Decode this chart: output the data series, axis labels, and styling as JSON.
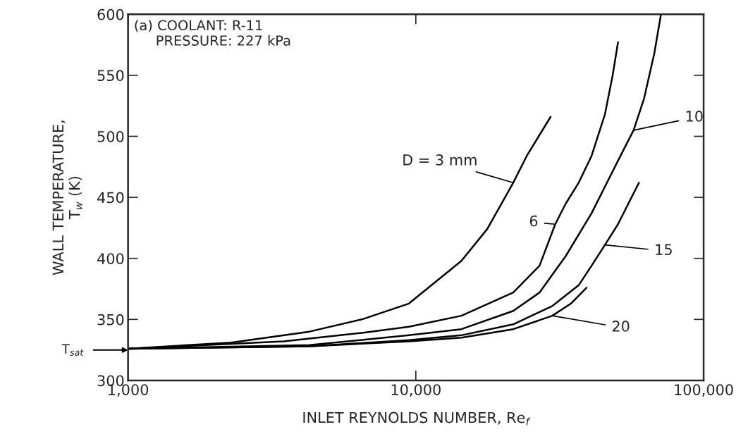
{
  "chart_data": {
    "type": "line",
    "xlabel": "INLET REYNOLDS NUMBER, Re$_{f}$",
    "ylabel": "WALL TEMPERATURE,\nT$_{w}$ (K)",
    "annotations": [
      "(a) COOLANT: R-11\n     PRESSURE: 227 kPa",
      "T$_{sat}$"
    ],
    "log": "x",
    "grid": false,
    "legend": "right",
    "marker": "none",
    "line_style": "solid",
    "xlim": [
      1000,
      100000
    ],
    "xticks": [
      {
        "value": 1000,
        "label": "1,000"
      },
      {
        "value": 10000,
        "label": "10,000"
      },
      {
        "value": 100000,
        "label": "100,000"
      }
    ],
    "ylim": [
      300,
      600
    ],
    "yticks": [
      300,
      350,
      400,
      450,
      500,
      550,
      600
    ],
    "series": [
      {
        "name": "D = 3 mm",
        "color": "#000000",
        "x": [
          1000,
          2280,
          4270,
          6490,
          9460,
          14400,
          17700,
          21800,
          24300,
          29400
        ],
        "values": [
          326,
          331,
          340,
          350,
          363,
          398,
          424,
          462,
          484,
          516
        ]
      },
      {
        "name": "6",
        "color": "#000000",
        "x": [
          1000,
          3470,
          6490,
          9460,
          14400,
          21800,
          26900,
          30500,
          33200,
          36800,
          40800,
          45400,
          48300,
          50400
        ],
        "values": [
          326,
          332,
          339,
          344,
          353,
          372,
          394,
          428,
          445,
          462,
          484,
          518,
          550,
          577
        ]
      },
      {
        "name": "10",
        "color": "#000000",
        "x": [
          1000,
          4270,
          9460,
          14400,
          21800,
          26900,
          33200,
          40800,
          50400,
          57100,
          62100,
          67400,
          71100
        ],
        "values": [
          326,
          329,
          337,
          342,
          357,
          372,
          402,
          437,
          480,
          505,
          531,
          568,
          600
        ]
      },
      {
        "name": "15",
        "color": "#000000",
        "x": [
          1000,
          4270,
          9460,
          14400,
          21800,
          29800,
          36800,
          40800,
          45400,
          50400,
          54800,
          59600
        ],
        "values": [
          326,
          328,
          333,
          337,
          346,
          361,
          378,
          394,
          411,
          428,
          445,
          462
        ]
      },
      {
        "name": "20",
        "color": "#000000",
        "x": [
          1000,
          4270,
          9460,
          14400,
          21800,
          29800,
          34600,
          39200
        ],
        "values": [
          326,
          328,
          332,
          335,
          342,
          353,
          363,
          376
        ]
      }
    ]
  }
}
